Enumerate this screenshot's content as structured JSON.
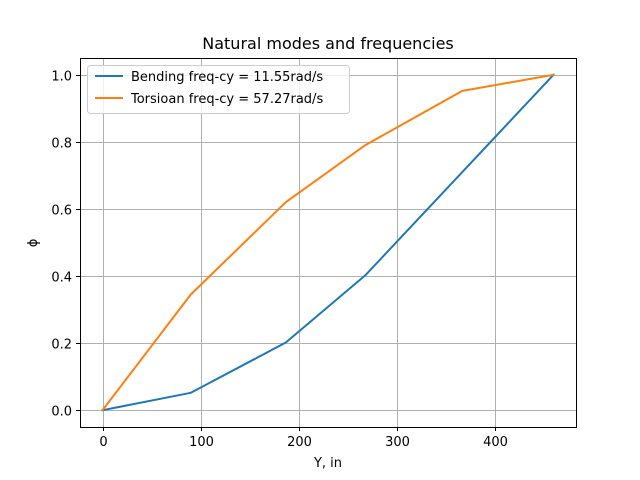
{
  "chart_data": {
    "type": "line",
    "title": "Natural modes and frequencies",
    "xlabel": "Y, in",
    "ylabel": "ϕ",
    "xlim": [
      -23,
      483
    ],
    "ylim": [
      -0.05,
      1.05
    ],
    "xticks": [
      0,
      100,
      200,
      300,
      400
    ],
    "yticks": [
      0.0,
      0.2,
      0.4,
      0.6,
      0.8,
      1.0
    ],
    "xtick_labels": [
      "0",
      "100",
      "200",
      "300",
      "400"
    ],
    "ytick_labels": [
      "0.0",
      "0.2",
      "0.4",
      "0.6",
      "0.8",
      "1.0"
    ],
    "grid": true,
    "legend_position": "top-left",
    "series": [
      {
        "name": "Bending freq-cy = 11.55rad/s",
        "color": "#1f77b4",
        "x": [
          0,
          90,
          187,
          268,
          367,
          460
        ],
        "y": [
          0.0,
          0.052,
          0.202,
          0.402,
          0.71,
          1.0
        ]
      },
      {
        "name": "Torsioan freq-cy = 57.27rad/s",
        "color": "#ff7f0e",
        "x": [
          0,
          90,
          187,
          268,
          367,
          460
        ],
        "y": [
          0.0,
          0.345,
          0.62,
          0.79,
          0.952,
          1.0
        ]
      }
    ]
  }
}
